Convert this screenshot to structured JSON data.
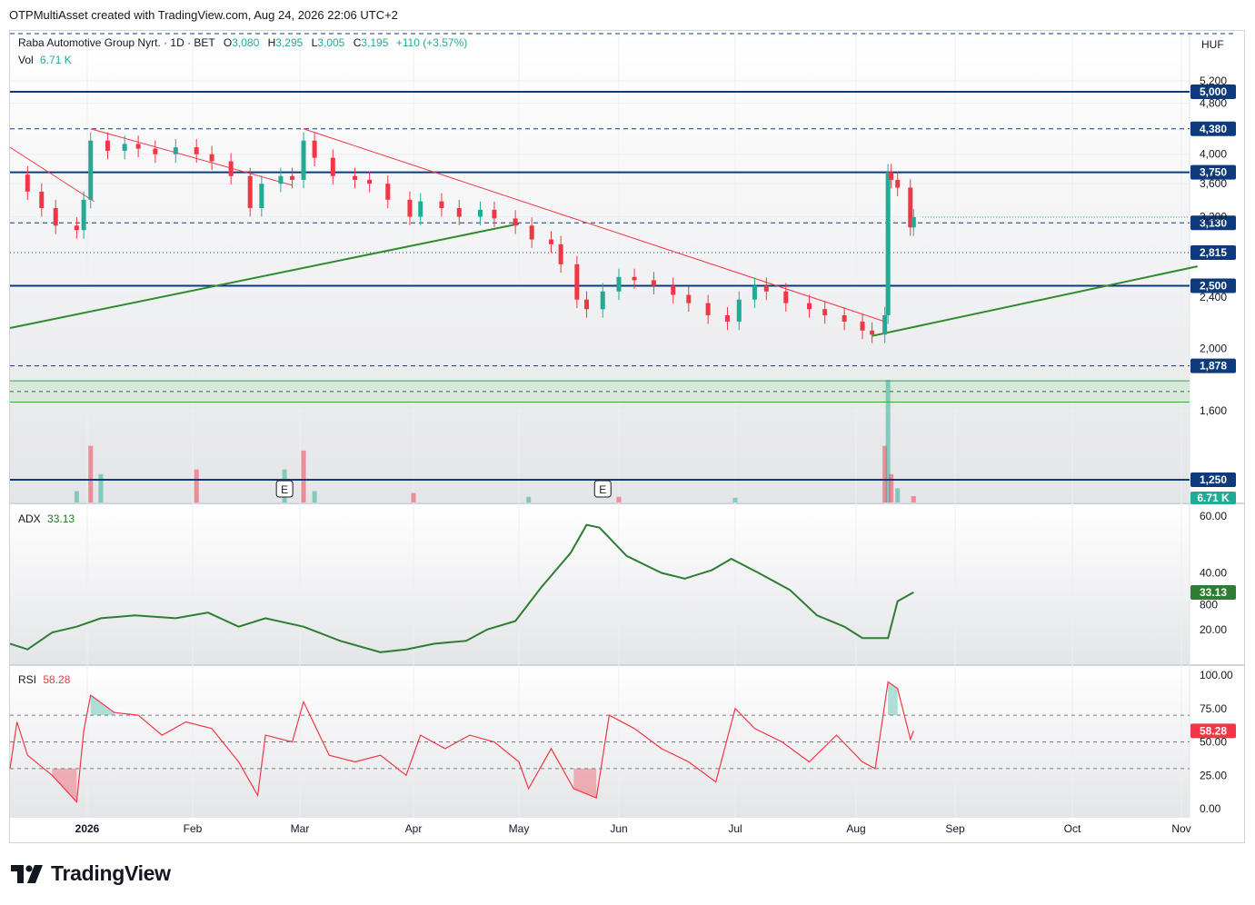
{
  "header": {
    "credit": "OTPMultiAsset created with TradingView.com, Aug 24, 2026 22:06 UTC+2"
  },
  "legend": {
    "symbol": "Raba Automotive Group Nyrt. · 1D · BET",
    "open_label": "O",
    "open": "3,080",
    "high_label": "H",
    "high": "3,295",
    "low_label": "L",
    "low": "3,005",
    "close_label": "C",
    "close": "3,195",
    "change": "+110 (+3.57%)",
    "vol_label": "Vol",
    "vol": "6.71 K"
  },
  "currency": "HUF",
  "brand": {
    "name": "TradingView",
    "logo": "tradingview-logo"
  },
  "colors": {
    "up": "#22ab94",
    "down": "#f23645",
    "level": "#0c3a7d",
    "trendline_down": "#f23645",
    "trendline_up": "#2e8b2e",
    "adx": "#2e7d32",
    "rsi": "#f23645",
    "zone": "#c8e6c9"
  },
  "chart_data": [
    {
      "type": "candlestick",
      "title": "Raba Automotive Group Nyrt. · 1D · BET",
      "x_ticks": [
        "2026",
        "Feb",
        "Mar",
        "Apr",
        "May",
        "Jun",
        "Jul",
        "Aug",
        "Sep",
        "Oct",
        "Nov"
      ],
      "y_ticks": [
        "5,200",
        "4,800",
        "4,000",
        "3,600",
        "3,200",
        "2,400",
        "2,000",
        "1,600",
        "800"
      ],
      "ylim": [
        800,
        5400
      ],
      "scale": "log",
      "grid": true,
      "last": {
        "open": 3080,
        "high": 3295,
        "low": 3005,
        "close": 3195,
        "change": "+110 (+3.57%)"
      },
      "price_close_series": [
        {
          "x": "2025-12-10",
          "y": 3720
        },
        {
          "x": "2025-12-15",
          "y": 3500
        },
        {
          "x": "2025-12-19",
          "y": 3300
        },
        {
          "x": "2025-12-23",
          "y": 3100
        },
        {
          "x": "2025-12-29",
          "y": 3050
        },
        {
          "x": "2025-12-31",
          "y": 3400
        },
        {
          "x": "2026-01-02",
          "y": 4200
        },
        {
          "x": "2026-01-07",
          "y": 4050
        },
        {
          "x": "2026-01-12",
          "y": 4150
        },
        {
          "x": "2026-01-16",
          "y": 4080
        },
        {
          "x": "2026-01-21",
          "y": 4000
        },
        {
          "x": "2026-01-27",
          "y": 4100
        },
        {
          "x": "2026-02-02",
          "y": 4000
        },
        {
          "x": "2026-02-06",
          "y": 3900
        },
        {
          "x": "2026-02-11",
          "y": 3700
        },
        {
          "x": "2026-02-16",
          "y": 3300
        },
        {
          "x": "2026-02-19",
          "y": 3600
        },
        {
          "x": "2026-02-24",
          "y": 3700
        },
        {
          "x": "2026-02-27",
          "y": 3650
        },
        {
          "x": "2026-03-02",
          "y": 4200
        },
        {
          "x": "2026-03-05",
          "y": 3950
        },
        {
          "x": "2026-03-10",
          "y": 3700
        },
        {
          "x": "2026-03-16",
          "y": 3650
        },
        {
          "x": "2026-03-20",
          "y": 3600
        },
        {
          "x": "2026-03-25",
          "y": 3400
        },
        {
          "x": "2026-03-31",
          "y": 3200
        },
        {
          "x": "2026-04-03",
          "y": 3380
        },
        {
          "x": "2026-04-09",
          "y": 3300
        },
        {
          "x": "2026-04-14",
          "y": 3200
        },
        {
          "x": "2026-04-20",
          "y": 3280
        },
        {
          "x": "2026-04-24",
          "y": 3180
        },
        {
          "x": "2026-04-30",
          "y": 3100
        },
        {
          "x": "2026-05-05",
          "y": 2950
        },
        {
          "x": "2026-05-11",
          "y": 2900
        },
        {
          "x": "2026-05-14",
          "y": 2700
        },
        {
          "x": "2026-05-19",
          "y": 2380
        },
        {
          "x": "2026-05-22",
          "y": 2300
        },
        {
          "x": "2026-05-27",
          "y": 2450
        },
        {
          "x": "2026-06-01",
          "y": 2580
        },
        {
          "x": "2026-06-05",
          "y": 2550
        },
        {
          "x": "2026-06-10",
          "y": 2500
        },
        {
          "x": "2026-06-15",
          "y": 2420
        },
        {
          "x": "2026-06-19",
          "y": 2350
        },
        {
          "x": "2026-06-24",
          "y": 2250
        },
        {
          "x": "2026-06-29",
          "y": 2200
        },
        {
          "x": "2026-07-02",
          "y": 2380
        },
        {
          "x": "2026-07-06",
          "y": 2500
        },
        {
          "x": "2026-07-09",
          "y": 2450
        },
        {
          "x": "2026-07-14",
          "y": 2350
        },
        {
          "x": "2026-07-20",
          "y": 2300
        },
        {
          "x": "2026-07-24",
          "y": 2250
        },
        {
          "x": "2026-07-29",
          "y": 2200
        },
        {
          "x": "2026-08-03",
          "y": 2130
        },
        {
          "x": "2026-08-06",
          "y": 2100
        },
        {
          "x": "2026-08-10",
          "y": 2250
        },
        {
          "x": "2026-08-11",
          "y": 3750
        },
        {
          "x": "2026-08-12",
          "y": 3650
        },
        {
          "x": "2026-08-14",
          "y": 3550
        },
        {
          "x": "2026-08-18",
          "y": 3080
        },
        {
          "x": "2026-08-19",
          "y": 3195
        }
      ],
      "horizontal_levels": [
        {
          "value": 5000,
          "label": "5,000",
          "style": "solid"
        },
        {
          "value": 4380,
          "label": "4,380",
          "style": "dashed"
        },
        {
          "value": 3750,
          "label": "3,750",
          "style": "solid"
        },
        {
          "value": 3130,
          "label": "3,130",
          "style": "dashed"
        },
        {
          "value": 2815,
          "label": "2,815",
          "style": "dotted"
        },
        {
          "value": 2500,
          "label": "2,500",
          "style": "solid"
        },
        {
          "value": 1878,
          "label": "1,878",
          "style": "dashed"
        },
        {
          "value": 1250,
          "label": "1,250",
          "style": "solid"
        }
      ],
      "support_zone": [
        1650,
        1780
      ],
      "trendlines": [
        {
          "color": "down",
          "points": [
            {
              "x": "2025-12-10",
              "y": 4100
            },
            {
              "x": "2026-01-03",
              "y": 3380
            }
          ]
        },
        {
          "color": "down",
          "points": [
            {
              "x": "2026-01-02",
              "y": 4380
            },
            {
              "x": "2026-02-27",
              "y": 3580
            }
          ]
        },
        {
          "color": "down",
          "points": [
            {
              "x": "2026-03-02",
              "y": 4380
            },
            {
              "x": "2026-08-10",
              "y": 2200
            }
          ]
        },
        {
          "color": "up",
          "points": [
            {
              "x": "2025-12-10",
              "y": 2150
            },
            {
              "x": "2026-05-01",
              "y": 3120
            }
          ]
        },
        {
          "color": "up",
          "points": [
            {
              "x": "2026-08-06",
              "y": 2090
            },
            {
              "x": "2026-11-05",
              "y": 2680
            }
          ]
        }
      ],
      "events": [
        {
          "x": "2026-02-25",
          "label": "E"
        },
        {
          "x": "2026-05-27",
          "label": "E"
        }
      ]
    },
    {
      "type": "bar",
      "title": "Vol",
      "last_value": "6.71 K",
      "volume_series": [
        {
          "x": "2025-12-29",
          "y": 12
        },
        {
          "x": "2026-01-02",
          "y": 60
        },
        {
          "x": "2026-01-05",
          "y": 30
        },
        {
          "x": "2026-02-02",
          "y": 35
        },
        {
          "x": "2026-02-25",
          "y": 35
        },
        {
          "x": "2026-03-02",
          "y": 55
        },
        {
          "x": "2026-03-05",
          "y": 12
        },
        {
          "x": "2026-04-01",
          "y": 10
        },
        {
          "x": "2026-05-04",
          "y": 6
        },
        {
          "x": "2026-06-01",
          "y": 6
        },
        {
          "x": "2026-07-01",
          "y": 5
        },
        {
          "x": "2026-08-10",
          "y": 60
        },
        {
          "x": "2026-08-11",
          "y": 130
        },
        {
          "x": "2026-08-12",
          "y": 30
        },
        {
          "x": "2026-08-14",
          "y": 15
        },
        {
          "x": "2026-08-19",
          "y": 6.71
        }
      ]
    },
    {
      "type": "line",
      "title": "ADX",
      "last_value": "33.13",
      "y_ticks": [
        "60.00",
        "40.00",
        "20.00"
      ],
      "ylim": [
        10,
        62
      ],
      "adx_series": [
        {
          "x": "2025-12-10",
          "y": 15
        },
        {
          "x": "2025-12-15",
          "y": 13
        },
        {
          "x": "2025-12-22",
          "y": 19
        },
        {
          "x": "2025-12-29",
          "y": 21
        },
        {
          "x": "2026-01-05",
          "y": 24
        },
        {
          "x": "2026-01-15",
          "y": 25
        },
        {
          "x": "2026-01-27",
          "y": 24
        },
        {
          "x": "2026-02-05",
          "y": 26
        },
        {
          "x": "2026-02-13",
          "y": 21
        },
        {
          "x": "2026-02-20",
          "y": 24
        },
        {
          "x": "2026-03-02",
          "y": 21
        },
        {
          "x": "2026-03-12",
          "y": 16
        },
        {
          "x": "2026-03-23",
          "y": 12
        },
        {
          "x": "2026-03-30",
          "y": 13
        },
        {
          "x": "2026-04-07",
          "y": 15
        },
        {
          "x": "2026-04-16",
          "y": 16
        },
        {
          "x": "2026-04-22",
          "y": 20
        },
        {
          "x": "2026-04-30",
          "y": 23
        },
        {
          "x": "2026-05-08",
          "y": 35
        },
        {
          "x": "2026-05-17",
          "y": 47
        },
        {
          "x": "2026-05-22",
          "y": 57
        },
        {
          "x": "2026-05-26",
          "y": 56
        },
        {
          "x": "2026-06-03",
          "y": 46
        },
        {
          "x": "2026-06-12",
          "y": 40
        },
        {
          "x": "2026-06-18",
          "y": 38
        },
        {
          "x": "2026-06-25",
          "y": 41
        },
        {
          "x": "2026-06-30",
          "y": 45
        },
        {
          "x": "2026-07-07",
          "y": 40
        },
        {
          "x": "2026-07-15",
          "y": 34
        },
        {
          "x": "2026-07-22",
          "y": 25
        },
        {
          "x": "2026-07-29",
          "y": 21
        },
        {
          "x": "2026-08-03",
          "y": 17
        },
        {
          "x": "2026-08-11",
          "y": 17
        },
        {
          "x": "2026-08-14",
          "y": 30
        },
        {
          "x": "2026-08-19",
          "y": 33.13
        }
      ]
    },
    {
      "type": "line",
      "title": "RSI",
      "last_value": "58.28",
      "y_ticks": [
        "100.00",
        "75.00",
        "50.00",
        "25.00",
        "0.00"
      ],
      "ylim": [
        -5,
        105
      ],
      "bands": [
        70,
        50,
        30
      ],
      "rsi_series": [
        {
          "x": "2025-12-10",
          "y": 30
        },
        {
          "x": "2025-12-12",
          "y": 65
        },
        {
          "x": "2025-12-15",
          "y": 40
        },
        {
          "x": "2025-12-22",
          "y": 25
        },
        {
          "x": "2025-12-29",
          "y": 5
        },
        {
          "x": "2025-12-31",
          "y": 58
        },
        {
          "x": "2026-01-02",
          "y": 85
        },
        {
          "x": "2026-01-09",
          "y": 72
        },
        {
          "x": "2026-01-16",
          "y": 70
        },
        {
          "x": "2026-01-23",
          "y": 55
        },
        {
          "x": "2026-01-30",
          "y": 65
        },
        {
          "x": "2026-02-06",
          "y": 60
        },
        {
          "x": "2026-02-13",
          "y": 35
        },
        {
          "x": "2026-02-18",
          "y": 10
        },
        {
          "x": "2026-02-20",
          "y": 55
        },
        {
          "x": "2026-02-27",
          "y": 50
        },
        {
          "x": "2026-03-02",
          "y": 80
        },
        {
          "x": "2026-03-09",
          "y": 40
        },
        {
          "x": "2026-03-16",
          "y": 35
        },
        {
          "x": "2026-03-23",
          "y": 40
        },
        {
          "x": "2026-03-30",
          "y": 25
        },
        {
          "x": "2026-04-03",
          "y": 55
        },
        {
          "x": "2026-04-10",
          "y": 45
        },
        {
          "x": "2026-04-17",
          "y": 55
        },
        {
          "x": "2026-04-24",
          "y": 50
        },
        {
          "x": "2026-05-01",
          "y": 35
        },
        {
          "x": "2026-05-04",
          "y": 15
        },
        {
          "x": "2026-05-11",
          "y": 45
        },
        {
          "x": "2026-05-18",
          "y": 15
        },
        {
          "x": "2026-05-25",
          "y": 8
        },
        {
          "x": "2026-05-29",
          "y": 70
        },
        {
          "x": "2026-06-05",
          "y": 60
        },
        {
          "x": "2026-06-12",
          "y": 45
        },
        {
          "x": "2026-06-19",
          "y": 35
        },
        {
          "x": "2026-06-26",
          "y": 20
        },
        {
          "x": "2026-07-01",
          "y": 75
        },
        {
          "x": "2026-07-06",
          "y": 60
        },
        {
          "x": "2026-07-13",
          "y": 50
        },
        {
          "x": "2026-07-20",
          "y": 35
        },
        {
          "x": "2026-07-27",
          "y": 55
        },
        {
          "x": "2026-08-03",
          "y": 35
        },
        {
          "x": "2026-08-07",
          "y": 30
        },
        {
          "x": "2026-08-11",
          "y": 95
        },
        {
          "x": "2026-08-14",
          "y": 90
        },
        {
          "x": "2026-08-18",
          "y": 52
        },
        {
          "x": "2026-08-19",
          "y": 58.28
        }
      ]
    }
  ]
}
